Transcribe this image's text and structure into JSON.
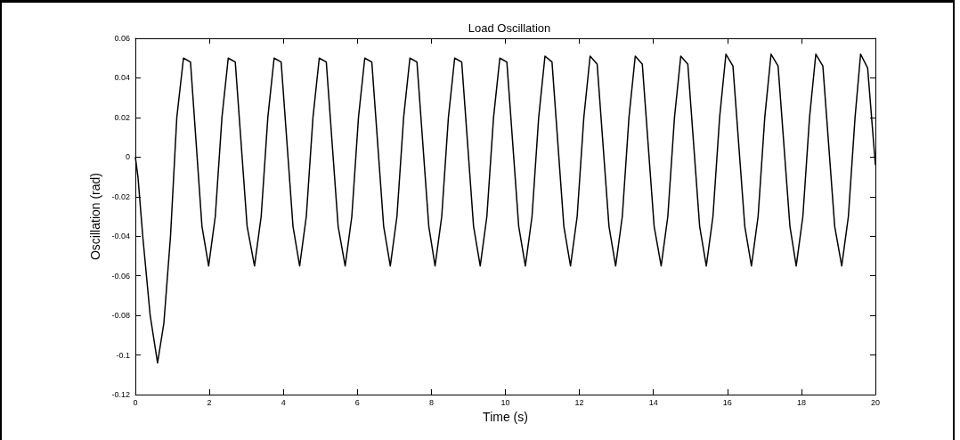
{
  "chart_data": {
    "type": "line",
    "title": "Load Oscillation",
    "xlabel": "Time (s)",
    "ylabel": "Oscillation (rad)",
    "xlim": [
      0,
      20
    ],
    "xticks": [
      0,
      2,
      4,
      6,
      8,
      10,
      12,
      14,
      16,
      18,
      20
    ],
    "ylim": [
      -0.12,
      0.06
    ],
    "yticks": [
      -0.12,
      -0.1,
      -0.08,
      -0.06,
      -0.04,
      -0.02,
      0,
      0.02,
      0.04,
      0.06
    ],
    "grid": false,
    "marker": "none",
    "line_style": "solid",
    "series": [
      {
        "color": "#000000",
        "x": [
          0,
          0.07,
          0.2,
          0.4,
          0.6,
          0.77,
          0.95,
          1.12,
          1.3,
          1.49,
          1.8,
          1.98,
          2.16,
          2.34,
          2.51,
          2.7,
          3.02,
          3.22,
          3.4,
          3.58,
          3.75,
          3.94,
          4.26,
          4.44,
          4.62,
          4.8,
          4.97,
          5.16,
          5.48,
          5.67,
          5.85,
          6.03,
          6.2,
          6.39,
          6.71,
          6.89,
          7.07,
          7.25,
          7.42,
          7.61,
          7.93,
          8.1,
          8.28,
          8.46,
          8.63,
          8.82,
          9.14,
          9.32,
          9.5,
          9.68,
          9.85,
          10.04,
          10.36,
          10.54,
          10.72,
          10.9,
          11.07,
          11.26,
          11.58,
          11.76,
          11.94,
          12.12,
          12.29,
          12.48,
          12.8,
          12.98,
          13.16,
          13.34,
          13.51,
          13.7,
          14.02,
          14.21,
          14.39,
          14.57,
          14.74,
          14.93,
          15.25,
          15.43,
          15.61,
          15.79,
          15.96,
          16.15,
          16.47,
          16.65,
          16.83,
          17.01,
          17.18,
          17.37,
          17.69,
          17.86,
          18.04,
          18.22,
          18.39,
          18.58,
          18.9,
          19.09,
          19.27,
          19.45,
          19.6,
          19.79,
          20
        ],
        "values": [
          0,
          -0.01,
          -0.04,
          -0.08,
          -0.104,
          -0.084,
          -0.04,
          0.02,
          0.05,
          0.048,
          -0.035,
          -0.055,
          -0.03,
          0.02,
          0.05,
          0.048,
          -0.035,
          -0.055,
          -0.03,
          0.02,
          0.05,
          0.048,
          -0.035,
          -0.055,
          -0.03,
          0.02,
          0.05,
          0.048,
          -0.035,
          -0.055,
          -0.03,
          0.02,
          0.05,
          0.048,
          -0.035,
          -0.055,
          -0.03,
          0.02,
          0.05,
          0.048,
          -0.035,
          -0.055,
          -0.03,
          0.02,
          0.05,
          0.048,
          -0.035,
          -0.055,
          -0.03,
          0.02,
          0.05,
          0.048,
          -0.035,
          -0.055,
          -0.03,
          0.02,
          0.051,
          0.048,
          -0.035,
          -0.055,
          -0.03,
          0.02,
          0.051,
          0.047,
          -0.035,
          -0.055,
          -0.03,
          0.02,
          0.051,
          0.047,
          -0.035,
          -0.055,
          -0.03,
          0.02,
          0.051,
          0.047,
          -0.035,
          -0.055,
          -0.03,
          0.02,
          0.052,
          0.046,
          -0.035,
          -0.055,
          -0.03,
          0.02,
          0.052,
          0.046,
          -0.035,
          -0.055,
          -0.03,
          0.02,
          0.052,
          0.046,
          -0.035,
          -0.055,
          -0.03,
          0.02,
          0.052,
          0.045,
          -0.004
        ]
      }
    ]
  }
}
